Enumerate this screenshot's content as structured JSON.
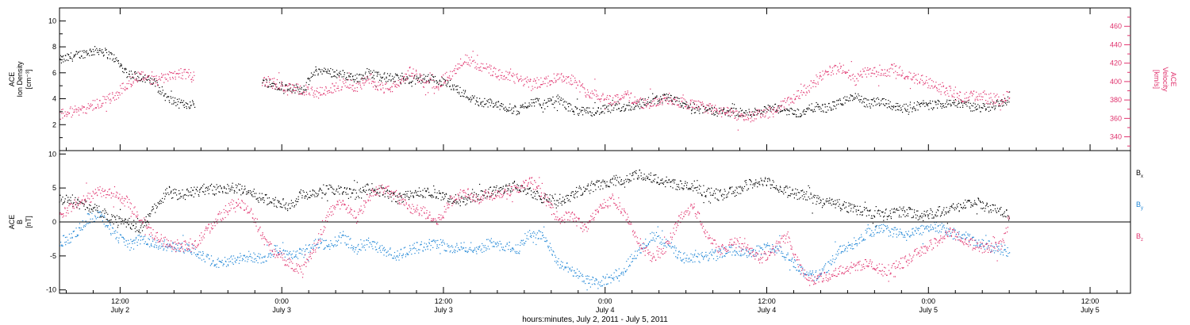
{
  "x_axis": {
    "title": "hours:minutes, July  2, 2011 - July  5, 2011",
    "tick_hours": [
      12,
      24,
      36,
      48,
      60,
      72,
      84
    ],
    "tick_times": [
      "12:00",
      "0:00",
      "12:00",
      "0:00",
      "12:00",
      "0:00",
      "12:00"
    ],
    "tick_dates": [
      "July 2",
      "July 3",
      "July 3",
      "July 4",
      "July 4",
      "July 5",
      "July 5"
    ],
    "range_hours": [
      7.5,
      87.0
    ]
  },
  "colors": {
    "black": "#000000",
    "red": "#e0336e",
    "blue": "#1f86d6"
  },
  "chart_data": [
    {
      "type": "scatter",
      "panel": "top",
      "left_axis": {
        "label_lines": [
          "ACE",
          "Ion Density",
          "[cm⁻³]"
        ],
        "range": [
          0,
          11
        ],
        "ticks": [
          2,
          4,
          6,
          8,
          10
        ]
      },
      "right_axis": {
        "label_lines": [
          "ACE",
          "Velocity",
          "[km/s]"
        ],
        "range": [
          325,
          480
        ],
        "ticks": [
          340,
          360,
          380,
          400,
          420,
          440,
          460
        ]
      },
      "data_gap_hours": [
        17.5,
        22.5
      ],
      "series": [
        {
          "color": "black",
          "axis": "left",
          "x": [
            7.5,
            8.5,
            9.5,
            10.5,
            11.0,
            11.5,
            12.5,
            13.5,
            14.5,
            15.0,
            15.5,
            16.5,
            17.3,
            22.5,
            23.5,
            24.5,
            25.5,
            26.5,
            27.5,
            28.5,
            29.5,
            30.5,
            31.5,
            32.5,
            33.5,
            34.5,
            35.5,
            36.5,
            37.5,
            38.5,
            39.5,
            40.5,
            41.5,
            42.5,
            43.5,
            44.5,
            45.5,
            46.5,
            47.5,
            48.5,
            49.5,
            50.5,
            51.5,
            52.5,
            53.5,
            54.5,
            55.5,
            56.5,
            57.5,
            58.5,
            59.5,
            60.5,
            61.5,
            62.5,
            63.5,
            64.5,
            65.5,
            66.5,
            67.5,
            68.5,
            69.5,
            70.5,
            71.5,
            72.5,
            73.5,
            74.5,
            75.5,
            76.5,
            77.5,
            78.0
          ],
          "y": [
            7.0,
            7.3,
            7.6,
            7.8,
            7.5,
            7.2,
            6.0,
            5.7,
            5.3,
            4.7,
            4.0,
            3.6,
            3.6,
            5.4,
            5.1,
            4.9,
            4.7,
            6.2,
            6.1,
            5.9,
            5.6,
            6.0,
            5.7,
            5.6,
            5.4,
            5.6,
            5.5,
            5.1,
            4.4,
            3.8,
            3.7,
            3.4,
            3.1,
            3.8,
            3.6,
            4.0,
            3.2,
            3.0,
            3.1,
            3.3,
            3.4,
            3.6,
            3.9,
            4.1,
            3.7,
            3.3,
            3.2,
            3.0,
            3.0,
            2.9,
            3.1,
            3.3,
            3.1,
            2.9,
            3.4,
            3.3,
            3.8,
            4.2,
            3.6,
            3.9,
            3.4,
            3.3,
            3.6,
            3.5,
            3.8,
            3.6,
            3.3,
            3.4,
            3.8,
            3.9
          ]
        },
        {
          "color": "red",
          "axis": "right",
          "x": [
            7.5,
            8.5,
            9.5,
            10.5,
            11.5,
            12.5,
            13.5,
            14.5,
            15.5,
            16.5,
            17.3,
            22.5,
            23.5,
            24.5,
            25.5,
            26.5,
            27.5,
            28.5,
            29.5,
            30.5,
            31.5,
            32.5,
            33.5,
            34.5,
            35.5,
            36.5,
            37.5,
            38.5,
            39.5,
            40.5,
            41.5,
            42.5,
            43.5,
            44.5,
            45.5,
            46.5,
            47.5,
            48.5,
            49.5,
            50.5,
            51.5,
            52.5,
            53.5,
            54.5,
            55.5,
            56.5,
            57.5,
            58.5,
            59.5,
            60.5,
            61.5,
            62.5,
            63.5,
            64.5,
            65.5,
            66.5,
            67.5,
            68.5,
            69.5,
            70.5,
            71.5,
            72.5,
            73.5,
            74.5,
            75.5,
            76.5,
            77.5,
            78.0
          ],
          "y": [
            365,
            368,
            372,
            378,
            384,
            398,
            408,
            400,
            407,
            410,
            405,
            402,
            398,
            393,
            392,
            387,
            391,
            398,
            395,
            402,
            393,
            395,
            412,
            400,
            398,
            408,
            425,
            418,
            412,
            406,
            403,
            398,
            400,
            406,
            403,
            390,
            385,
            380,
            386,
            378,
            375,
            383,
            378,
            375,
            372,
            368,
            365,
            362,
            365,
            368,
            378,
            387,
            400,
            412,
            415,
            402,
            412,
            408,
            415,
            405,
            402,
            397,
            390,
            382,
            386,
            382,
            380,
            387
          ]
        }
      ]
    },
    {
      "type": "scatter",
      "panel": "bottom",
      "left_axis": {
        "label_lines": [
          "ACE",
          "B",
          "[nT]"
        ],
        "range": [
          -10.5,
          10.5
        ],
        "ticks": [
          -10,
          -5,
          0,
          5,
          10
        ]
      },
      "zero_line": true,
      "legend": {
        "placement": "right",
        "entries": [
          {
            "label": "B",
            "sub": "x",
            "color": "black"
          },
          {
            "label": "B",
            "sub": "y",
            "color": "blue"
          },
          {
            "label": "B",
            "sub": "z",
            "color": "red"
          }
        ]
      },
      "series": [
        {
          "color": "black",
          "x": [
            7.5,
            8.5,
            9.5,
            10.5,
            11.5,
            12.5,
            13.5,
            14.5,
            15.5,
            16.5,
            17.5,
            18.5,
            19.5,
            20.5,
            21.5,
            22.5,
            23.5,
            24.5,
            25.5,
            26.5,
            27.5,
            28.5,
            29.5,
            30.5,
            31.5,
            32.5,
            33.5,
            34.5,
            35.5,
            36.5,
            37.5,
            38.5,
            39.5,
            40.5,
            41.5,
            42.5,
            43.5,
            44.5,
            45.5,
            46.5,
            47.5,
            48.5,
            49.5,
            50.5,
            51.5,
            52.5,
            53.5,
            54.5,
            55.5,
            56.5,
            57.5,
            58.5,
            59.5,
            60.5,
            61.5,
            62.5,
            63.5,
            64.5,
            65.5,
            66.5,
            67.5,
            68.5,
            69.5,
            70.5,
            71.5,
            72.5,
            73.5,
            74.5,
            75.5,
            76.5,
            77.5,
            78.0
          ],
          "y": [
            3.5,
            3.0,
            2.5,
            1.5,
            0.5,
            0.0,
            -1.0,
            2.0,
            4.5,
            4.0,
            4.5,
            5.0,
            4.8,
            5.0,
            4.5,
            3.5,
            3.0,
            2.5,
            4.0,
            4.5,
            5.0,
            4.5,
            4.0,
            5.0,
            4.5,
            3.5,
            4.0,
            4.5,
            4.0,
            3.5,
            3.0,
            4.0,
            4.5,
            5.0,
            5.5,
            4.5,
            3.5,
            3.0,
            4.0,
            5.0,
            5.5,
            6.0,
            6.5,
            7.0,
            6.5,
            6.0,
            5.5,
            5.0,
            4.5,
            4.0,
            4.5,
            5.5,
            6.0,
            5.5,
            4.5,
            4.0,
            3.5,
            3.0,
            2.5,
            2.0,
            1.5,
            1.0,
            1.5,
            1.5,
            1.0,
            1.5,
            2.0,
            2.5,
            3.0,
            2.0,
            1.5,
            1.0
          ]
        },
        {
          "color": "blue",
          "x": [
            7.5,
            8.5,
            9.5,
            10.5,
            11.5,
            12.5,
            13.5,
            14.5,
            15.5,
            16.5,
            17.5,
            18.5,
            19.5,
            20.5,
            21.5,
            22.5,
            23.5,
            24.5,
            25.5,
            26.5,
            27.5,
            28.5,
            29.5,
            30.5,
            31.5,
            32.5,
            33.5,
            34.5,
            35.5,
            36.5,
            37.5,
            38.5,
            39.5,
            40.5,
            41.5,
            42.5,
            43.5,
            44.5,
            45.5,
            46.5,
            47.5,
            48.5,
            49.5,
            50.5,
            51.5,
            52.5,
            53.5,
            54.5,
            55.5,
            56.5,
            57.5,
            58.5,
            59.5,
            60.5,
            61.5,
            62.5,
            63.5,
            64.5,
            65.5,
            66.5,
            67.5,
            68.5,
            69.5,
            70.5,
            71.5,
            72.5,
            73.5,
            74.5,
            75.5,
            76.5,
            77.5,
            78.0
          ],
          "y": [
            -3.0,
            -2.0,
            0.5,
            1.0,
            -1.5,
            -3.5,
            -2.5,
            -3.0,
            -3.5,
            -3.8,
            -4.0,
            -5.5,
            -6.0,
            -5.5,
            -5.0,
            -5.5,
            -4.0,
            -5.0,
            -4.5,
            -3.0,
            -3.5,
            -2.0,
            -4.0,
            -3.0,
            -4.0,
            -5.0,
            -4.0,
            -3.5,
            -3.0,
            -4.0,
            -3.5,
            -4.0,
            -3.0,
            -3.5,
            -4.0,
            -1.5,
            -2.0,
            -6.0,
            -7.0,
            -8.5,
            -9.0,
            -8.0,
            -6.5,
            -4.0,
            -2.0,
            -3.0,
            -5.0,
            -5.5,
            -5.0,
            -4.5,
            -4.0,
            -4.5,
            -4.0,
            -3.5,
            -5.0,
            -7.0,
            -8.0,
            -6.5,
            -4.0,
            -3.0,
            -1.5,
            -1.0,
            -1.5,
            -2.0,
            -1.0,
            -0.5,
            -1.5,
            -2.0,
            -3.0,
            -3.5,
            -4.0,
            -4.5
          ]
        },
        {
          "color": "red",
          "x": [
            7.5,
            8.5,
            9.5,
            10.5,
            11.5,
            12.5,
            13.5,
            14.5,
            15.5,
            16.5,
            17.5,
            18.5,
            19.5,
            20.5,
            21.5,
            22.5,
            23.5,
            24.5,
            25.5,
            26.5,
            27.5,
            28.5,
            29.5,
            30.5,
            31.5,
            32.5,
            33.5,
            34.5,
            35.5,
            36.5,
            37.5,
            38.5,
            39.5,
            40.5,
            41.5,
            42.5,
            43.5,
            44.5,
            45.5,
            46.5,
            47.5,
            48.5,
            49.5,
            50.5,
            51.5,
            52.5,
            53.5,
            54.5,
            55.5,
            56.5,
            57.5,
            58.5,
            59.5,
            60.5,
            61.5,
            62.5,
            63.5,
            64.5,
            65.5,
            66.5,
            67.5,
            68.5,
            69.5,
            70.5,
            71.5,
            72.5,
            73.5,
            74.5,
            75.5,
            76.5,
            77.5,
            78.0
          ],
          "y": [
            1.0,
            2.5,
            3.5,
            4.5,
            4.0,
            3.0,
            0.5,
            -2.0,
            -3.0,
            -3.5,
            -3.5,
            -1.0,
            1.0,
            3.0,
            2.0,
            -2.0,
            -4.5,
            -6.0,
            -7.0,
            -3.5,
            1.5,
            3.0,
            0.5,
            4.0,
            5.0,
            4.0,
            2.0,
            1.5,
            0.0,
            3.0,
            4.5,
            3.5,
            4.0,
            4.5,
            5.0,
            6.0,
            3.5,
            0.5,
            1.0,
            -1.0,
            2.0,
            3.5,
            1.0,
            -3.0,
            -5.5,
            -3.5,
            0.5,
            2.5,
            -1.5,
            -4.0,
            -3.0,
            -3.5,
            -5.5,
            -4.0,
            -2.0,
            -7.0,
            -8.5,
            -8.0,
            -7.0,
            -6.5,
            -6.0,
            -7.5,
            -6.5,
            -5.5,
            -4.0,
            -3.0,
            -1.5,
            -2.5,
            -3.5,
            -4.0,
            -3.0,
            1.5
          ]
        }
      ]
    }
  ]
}
